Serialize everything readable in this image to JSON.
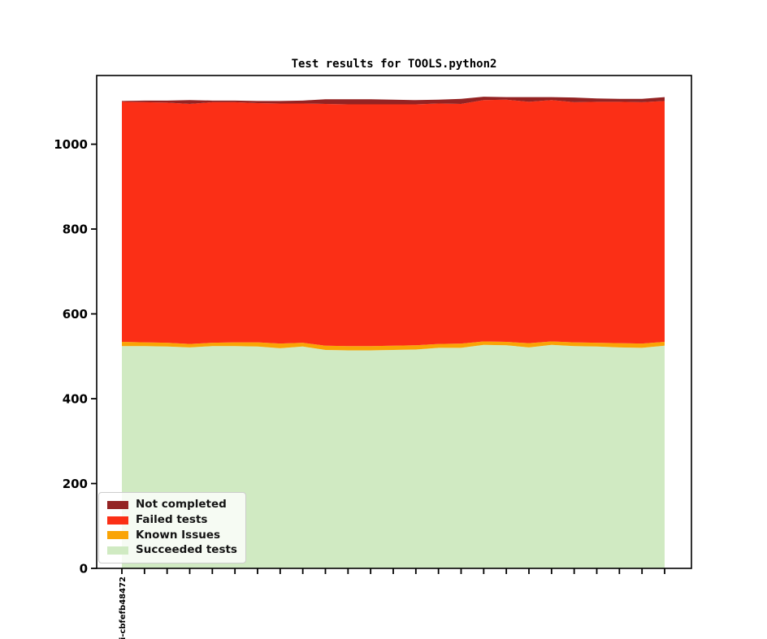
{
  "chart_data": {
    "type": "area",
    "stacked": true,
    "title": "Test results for TOOLS.python2",
    "xlabel": "",
    "ylabel": "",
    "grid": false,
    "y_ticks": [
      0,
      200,
      400,
      600,
      800,
      1000
    ],
    "ylim": [
      0,
      1162
    ],
    "categories": [
      "i-cbfefb48472",
      "",
      "",
      "",
      "",
      "",
      "",
      "",
      "",
      "",
      "",
      "",
      "",
      "",
      "",
      "",
      "",
      "",
      "",
      "",
      "",
      "",
      "",
      "",
      ""
    ],
    "series": [
      {
        "name": "Succeeded tests",
        "color": "#D0EAC2",
        "values": [
          524,
          524,
          523,
          521,
          524,
          524,
          523,
          519,
          523,
          515,
          514,
          514,
          515,
          516,
          520,
          520,
          527,
          526,
          521,
          527,
          524,
          523,
          521,
          520,
          525
        ]
      },
      {
        "name": "Known Issues",
        "color": "#FAA405",
        "values": [
          10,
          9,
          9,
          8,
          8,
          9,
          10,
          11,
          9,
          10,
          10,
          10,
          10,
          10,
          9,
          10,
          8,
          8,
          10,
          8,
          9,
          9,
          10,
          10,
          9
        ]
      },
      {
        "name": "Failed tests",
        "color": "#FB2F16",
        "values": [
          566,
          566,
          566,
          566,
          567,
          566,
          564,
          566,
          564,
          570,
          570,
          570,
          569,
          568,
          567,
          565,
          569,
          571,
          569,
          569,
          566,
          568,
          569,
          569,
          568
        ]
      },
      {
        "name": "Not completed",
        "color": "#942323",
        "values": [
          2,
          4,
          5,
          9,
          4,
          4,
          5,
          6,
          7,
          11,
          12,
          12,
          11,
          10,
          9,
          12,
          8,
          6,
          11,
          7,
          11,
          8,
          7,
          8,
          9
        ]
      }
    ],
    "legend": {
      "position": "lower left",
      "entries": [
        {
          "label": "Not completed",
          "color": "#942323"
        },
        {
          "label": "Failed tests",
          "color": "#FB2F16"
        },
        {
          "label": "Known Issues",
          "color": "#FAA405"
        },
        {
          "label": "Succeeded tests",
          "color": "#D0EAC2"
        }
      ]
    }
  }
}
